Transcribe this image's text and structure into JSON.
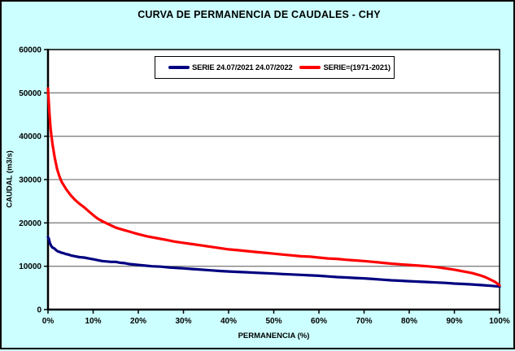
{
  "colors": {
    "background": "#CCFFFF",
    "plot_background": "#FFFFFF",
    "gridline": "#808080",
    "axis": "#000000"
  },
  "chart_data": {
    "type": "line",
    "title": "CURVA DE PERMANENCIA DE CAUDALES - CHY",
    "xlabel": "PERMANENCIA (%)",
    "ylabel": "CAUDAL (m3/s)",
    "xlim": [
      0,
      100
    ],
    "ylim": [
      0,
      60000
    ],
    "grid": "horizontal-gray",
    "legend_position": "top-center-inside",
    "x_tick_values": [
      0,
      10,
      20,
      30,
      40,
      50,
      60,
      70,
      80,
      90,
      100
    ],
    "x_tick_labels": [
      "0%",
      "10%",
      "20%",
      "30%",
      "40%",
      "50%",
      "60%",
      "70%",
      "80%",
      "90%",
      "100%"
    ],
    "y_tick_values": [
      0,
      10000,
      20000,
      30000,
      40000,
      50000,
      60000
    ],
    "y_tick_labels": [
      "0",
      "10000",
      "20000",
      "30000",
      "40000",
      "50000",
      "60000"
    ],
    "series": [
      {
        "id": "serie-2021-2022",
        "name": "SERIE 24.07/2021 24.07/2022",
        "color": "#000080",
        "points": [
          [
            0,
            16700
          ],
          [
            0.2,
            16300
          ],
          [
            0.4,
            15400
          ],
          [
            0.7,
            14700
          ],
          [
            1,
            14300
          ],
          [
            1.4,
            14100
          ],
          [
            1.8,
            13700
          ],
          [
            2.2,
            13400
          ],
          [
            2.6,
            13300
          ],
          [
            3,
            13100
          ],
          [
            3.5,
            13000
          ],
          [
            4,
            12800
          ],
          [
            4.5,
            12700
          ],
          [
            5,
            12500
          ],
          [
            6,
            12300
          ],
          [
            7,
            12100
          ],
          [
            8,
            12000
          ],
          [
            9,
            11800
          ],
          [
            10,
            11600
          ],
          [
            11,
            11400
          ],
          [
            12,
            11200
          ],
          [
            13,
            11100
          ],
          [
            14,
            11000
          ],
          [
            15,
            11000
          ],
          [
            16,
            10800
          ],
          [
            17,
            10700
          ],
          [
            18,
            10500
          ],
          [
            19,
            10400
          ],
          [
            20,
            10300
          ],
          [
            21,
            10200
          ],
          [
            23,
            10000
          ],
          [
            25,
            9900
          ],
          [
            27,
            9700
          ],
          [
            30,
            9500
          ],
          [
            32,
            9350
          ],
          [
            34,
            9200
          ],
          [
            36,
            9050
          ],
          [
            38,
            8900
          ],
          [
            40,
            8800
          ],
          [
            42,
            8700
          ],
          [
            44,
            8600
          ],
          [
            46,
            8500
          ],
          [
            48,
            8400
          ],
          [
            50,
            8300
          ],
          [
            52,
            8200
          ],
          [
            54,
            8100
          ],
          [
            56,
            8000
          ],
          [
            58,
            7900
          ],
          [
            60,
            7800
          ],
          [
            62,
            7650
          ],
          [
            64,
            7500
          ],
          [
            66,
            7400
          ],
          [
            68,
            7300
          ],
          [
            70,
            7200
          ],
          [
            72,
            7050
          ],
          [
            74,
            6900
          ],
          [
            76,
            6750
          ],
          [
            78,
            6650
          ],
          [
            80,
            6550
          ],
          [
            82,
            6450
          ],
          [
            84,
            6350
          ],
          [
            86,
            6250
          ],
          [
            88,
            6150
          ],
          [
            90,
            6000
          ],
          [
            92,
            5900
          ],
          [
            94,
            5800
          ],
          [
            96,
            5650
          ],
          [
            98,
            5500
          ],
          [
            100,
            5300
          ]
        ]
      },
      {
        "id": "serie-1971-2021",
        "name": "SERIE=(1971-2021)",
        "color": "#FF0000",
        "points": [
          [
            0,
            51000
          ],
          [
            0.3,
            45500
          ],
          [
            0.6,
            41500
          ],
          [
            1,
            38200
          ],
          [
            1.5,
            35000
          ],
          [
            2,
            32500
          ],
          [
            2.5,
            30800
          ],
          [
            3,
            29500
          ],
          [
            4,
            27800
          ],
          [
            5,
            26400
          ],
          [
            6,
            25300
          ],
          [
            7,
            24400
          ],
          [
            8,
            23600
          ],
          [
            9,
            22700
          ],
          [
            10,
            21800
          ],
          [
            11,
            21000
          ],
          [
            12,
            20400
          ],
          [
            13,
            19900
          ],
          [
            14,
            19400
          ],
          [
            15,
            18900
          ],
          [
            16,
            18600
          ],
          [
            17,
            18300
          ],
          [
            18,
            18000
          ],
          [
            19,
            17700
          ],
          [
            20,
            17400
          ],
          [
            22,
            16900
          ],
          [
            24,
            16500
          ],
          [
            26,
            16100
          ],
          [
            28,
            15700
          ],
          [
            30,
            15400
          ],
          [
            32,
            15100
          ],
          [
            34,
            14800
          ],
          [
            36,
            14500
          ],
          [
            38,
            14200
          ],
          [
            40,
            13900
          ],
          [
            42,
            13700
          ],
          [
            44,
            13500
          ],
          [
            46,
            13300
          ],
          [
            48,
            13100
          ],
          [
            50,
            12900
          ],
          [
            52,
            12700
          ],
          [
            54,
            12500
          ],
          [
            56,
            12300
          ],
          [
            58,
            12200
          ],
          [
            60,
            12000
          ],
          [
            62,
            11800
          ],
          [
            64,
            11700
          ],
          [
            66,
            11500
          ],
          [
            68,
            11350
          ],
          [
            70,
            11200
          ],
          [
            72,
            11000
          ],
          [
            74,
            10800
          ],
          [
            76,
            10600
          ],
          [
            78,
            10450
          ],
          [
            80,
            10300
          ],
          [
            82,
            10150
          ],
          [
            84,
            10000
          ],
          [
            86,
            9800
          ],
          [
            88,
            9500
          ],
          [
            90,
            9200
          ],
          [
            92,
            8800
          ],
          [
            93,
            8600
          ],
          [
            94,
            8400
          ],
          [
            95,
            8100
          ],
          [
            96,
            7800
          ],
          [
            97,
            7400
          ],
          [
            98,
            6900
          ],
          [
            99,
            6400
          ],
          [
            99.5,
            6000
          ],
          [
            100,
            5600
          ]
        ]
      }
    ]
  }
}
